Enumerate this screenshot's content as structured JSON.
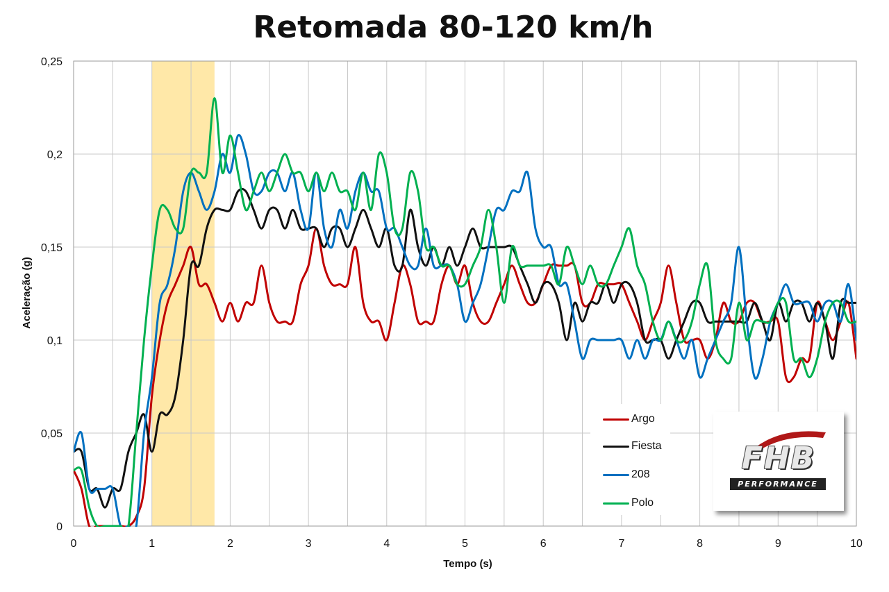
{
  "chart_data": {
    "type": "line",
    "title": "Retomada 80-120 km/h",
    "xlabel": "Tempo (s)",
    "ylabel": "Aceleração (g)",
    "xlim": [
      0,
      10
    ],
    "ylim": [
      0,
      0.25
    ],
    "x_ticks": [
      "0",
      "1",
      "2",
      "3",
      "4",
      "5",
      "6",
      "7",
      "8",
      "9",
      "10"
    ],
    "y_ticks": [
      "0",
      "0,05",
      "0,1",
      "0,15",
      "0,2",
      "0,25"
    ],
    "grid": true,
    "highlight_band": [
      1.0,
      1.8
    ],
    "legend_position": "bottom-right",
    "series": [
      {
        "name": "Argo",
        "color": "#c00000",
        "x": [
          0,
          0.1,
          0.2,
          0.3,
          0.4,
          0.5,
          0.6,
          0.7,
          0.8,
          0.9,
          1.0,
          1.1,
          1.2,
          1.3,
          1.4,
          1.5,
          1.6,
          1.7,
          1.8,
          1.9,
          2.0,
          2.1,
          2.2,
          2.3,
          2.4,
          2.5,
          2.6,
          2.7,
          2.8,
          2.9,
          3.0,
          3.1,
          3.2,
          3.3,
          3.4,
          3.5,
          3.6,
          3.7,
          3.8,
          3.9,
          4.0,
          4.1,
          4.2,
          4.3,
          4.4,
          4.5,
          4.6,
          4.7,
          4.8,
          4.9,
          5.0,
          5.1,
          5.2,
          5.3,
          5.4,
          5.5,
          5.6,
          5.7,
          5.8,
          5.9,
          6.0,
          6.1,
          6.2,
          6.3,
          6.4,
          6.5,
          6.6,
          6.7,
          6.8,
          6.9,
          7.0,
          7.1,
          7.2,
          7.3,
          7.4,
          7.5,
          7.6,
          7.7,
          7.8,
          7.9,
          8.0,
          8.1,
          8.2,
          8.3,
          8.4,
          8.5,
          8.6,
          8.7,
          8.8,
          8.9,
          9.0,
          9.1,
          9.2,
          9.3,
          9.4,
          9.5,
          9.6,
          9.7,
          9.8,
          9.9,
          10.0
        ],
        "y": [
          0.03,
          0.02,
          0.0,
          0.0,
          0.0,
          0.0,
          0.0,
          0.0,
          0.005,
          0.02,
          0.07,
          0.1,
          0.12,
          0.13,
          0.14,
          0.15,
          0.13,
          0.13,
          0.12,
          0.11,
          0.12,
          0.11,
          0.12,
          0.12,
          0.14,
          0.12,
          0.11,
          0.11,
          0.11,
          0.13,
          0.14,
          0.16,
          0.14,
          0.13,
          0.13,
          0.13,
          0.15,
          0.12,
          0.11,
          0.11,
          0.1,
          0.12,
          0.14,
          0.13,
          0.11,
          0.11,
          0.11,
          0.13,
          0.14,
          0.13,
          0.14,
          0.12,
          0.11,
          0.11,
          0.12,
          0.13,
          0.14,
          0.13,
          0.12,
          0.12,
          0.13,
          0.14,
          0.14,
          0.14,
          0.14,
          0.12,
          0.12,
          0.13,
          0.13,
          0.13,
          0.13,
          0.12,
          0.11,
          0.1,
          0.11,
          0.12,
          0.14,
          0.12,
          0.1,
          0.1,
          0.1,
          0.09,
          0.1,
          0.12,
          0.11,
          0.11,
          0.12,
          0.12,
          0.11,
          0.11,
          0.11,
          0.08,
          0.08,
          0.09,
          0.09,
          0.12,
          0.11,
          0.1,
          0.11,
          0.12,
          0.09
        ]
      },
      {
        "name": "Fiesta",
        "color": "#111111",
        "x": [
          0,
          0.1,
          0.2,
          0.3,
          0.4,
          0.5,
          0.6,
          0.7,
          0.8,
          0.9,
          1.0,
          1.1,
          1.2,
          1.3,
          1.4,
          1.5,
          1.6,
          1.7,
          1.8,
          1.9,
          2.0,
          2.1,
          2.2,
          2.3,
          2.4,
          2.5,
          2.6,
          2.7,
          2.8,
          2.9,
          3.0,
          3.1,
          3.2,
          3.3,
          3.4,
          3.5,
          3.6,
          3.7,
          3.8,
          3.9,
          4.0,
          4.1,
          4.2,
          4.3,
          4.4,
          4.5,
          4.6,
          4.7,
          4.8,
          4.9,
          5.0,
          5.1,
          5.2,
          5.3,
          5.4,
          5.5,
          5.6,
          5.7,
          5.8,
          5.9,
          6.0,
          6.1,
          6.2,
          6.3,
          6.4,
          6.5,
          6.6,
          6.7,
          6.8,
          6.9,
          7.0,
          7.1,
          7.2,
          7.3,
          7.4,
          7.5,
          7.6,
          7.7,
          7.8,
          7.9,
          8.0,
          8.1,
          8.2,
          8.3,
          8.4,
          8.5,
          8.6,
          8.7,
          8.8,
          8.9,
          9.0,
          9.1,
          9.2,
          9.3,
          9.4,
          9.5,
          9.6,
          9.7,
          9.8,
          9.9,
          10.0
        ],
        "y": [
          0.04,
          0.04,
          0.02,
          0.02,
          0.01,
          0.02,
          0.02,
          0.04,
          0.05,
          0.06,
          0.04,
          0.06,
          0.06,
          0.07,
          0.1,
          0.14,
          0.14,
          0.16,
          0.17,
          0.17,
          0.17,
          0.18,
          0.18,
          0.17,
          0.16,
          0.17,
          0.17,
          0.16,
          0.17,
          0.16,
          0.16,
          0.16,
          0.15,
          0.16,
          0.16,
          0.15,
          0.16,
          0.17,
          0.16,
          0.15,
          0.16,
          0.14,
          0.14,
          0.17,
          0.15,
          0.14,
          0.15,
          0.14,
          0.15,
          0.14,
          0.15,
          0.16,
          0.15,
          0.15,
          0.15,
          0.15,
          0.15,
          0.14,
          0.13,
          0.12,
          0.13,
          0.13,
          0.12,
          0.1,
          0.12,
          0.11,
          0.12,
          0.12,
          0.13,
          0.12,
          0.13,
          0.13,
          0.12,
          0.1,
          0.1,
          0.1,
          0.09,
          0.1,
          0.11,
          0.12,
          0.12,
          0.11,
          0.11,
          0.11,
          0.11,
          0.11,
          0.11,
          0.12,
          0.11,
          0.1,
          0.12,
          0.11,
          0.12,
          0.12,
          0.11,
          0.12,
          0.11,
          0.09,
          0.12,
          0.12,
          0.12
        ]
      },
      {
        "name": "208",
        "color": "#0070c0",
        "x": [
          0,
          0.1,
          0.2,
          0.3,
          0.4,
          0.5,
          0.6,
          0.7,
          0.8,
          0.9,
          1.0,
          1.1,
          1.2,
          1.3,
          1.4,
          1.5,
          1.6,
          1.7,
          1.8,
          1.9,
          2.0,
          2.1,
          2.2,
          2.3,
          2.4,
          2.5,
          2.6,
          2.7,
          2.8,
          2.9,
          3.0,
          3.1,
          3.2,
          3.3,
          3.4,
          3.5,
          3.6,
          3.7,
          3.8,
          3.9,
          4.0,
          4.1,
          4.2,
          4.3,
          4.4,
          4.5,
          4.6,
          4.7,
          4.8,
          4.9,
          5.0,
          5.1,
          5.2,
          5.3,
          5.4,
          5.5,
          5.6,
          5.7,
          5.8,
          5.9,
          6.0,
          6.1,
          6.2,
          6.3,
          6.4,
          6.5,
          6.6,
          6.7,
          6.8,
          6.9,
          7.0,
          7.1,
          7.2,
          7.3,
          7.4,
          7.5,
          7.6,
          7.7,
          7.8,
          7.9,
          8.0,
          8.1,
          8.2,
          8.3,
          8.4,
          8.5,
          8.6,
          8.7,
          8.8,
          8.9,
          9.0,
          9.1,
          9.2,
          9.3,
          9.4,
          9.5,
          9.6,
          9.7,
          9.8,
          9.9,
          10.0
        ],
        "y": [
          0.04,
          0.05,
          0.02,
          0.02,
          0.02,
          0.02,
          0.0,
          0.0,
          0.0,
          0.05,
          0.08,
          0.12,
          0.13,
          0.15,
          0.18,
          0.19,
          0.18,
          0.17,
          0.18,
          0.2,
          0.19,
          0.21,
          0.2,
          0.18,
          0.18,
          0.19,
          0.19,
          0.18,
          0.19,
          0.17,
          0.16,
          0.19,
          0.16,
          0.15,
          0.17,
          0.16,
          0.18,
          0.19,
          0.18,
          0.18,
          0.16,
          0.16,
          0.15,
          0.14,
          0.14,
          0.16,
          0.14,
          0.14,
          0.14,
          0.13,
          0.11,
          0.12,
          0.13,
          0.15,
          0.17,
          0.17,
          0.18,
          0.18,
          0.19,
          0.16,
          0.15,
          0.15,
          0.13,
          0.13,
          0.11,
          0.09,
          0.1,
          0.1,
          0.1,
          0.1,
          0.1,
          0.09,
          0.1,
          0.09,
          0.1,
          0.1,
          0.11,
          0.1,
          0.09,
          0.1,
          0.08,
          0.09,
          0.1,
          0.11,
          0.12,
          0.15,
          0.11,
          0.08,
          0.09,
          0.11,
          0.12,
          0.13,
          0.12,
          0.12,
          0.12,
          0.11,
          0.12,
          0.12,
          0.11,
          0.13,
          0.1
        ]
      },
      {
        "name": "Polo",
        "color": "#00b050",
        "x": [
          0,
          0.1,
          0.2,
          0.3,
          0.4,
          0.5,
          0.6,
          0.7,
          0.8,
          0.9,
          1.0,
          1.1,
          1.2,
          1.3,
          1.4,
          1.5,
          1.6,
          1.7,
          1.8,
          1.9,
          2.0,
          2.1,
          2.2,
          2.3,
          2.4,
          2.5,
          2.6,
          2.7,
          2.8,
          2.9,
          3.0,
          3.1,
          3.2,
          3.3,
          3.4,
          3.5,
          3.6,
          3.7,
          3.8,
          3.9,
          4.0,
          4.1,
          4.2,
          4.3,
          4.4,
          4.5,
          4.6,
          4.7,
          4.8,
          4.9,
          5.0,
          5.1,
          5.2,
          5.3,
          5.4,
          5.5,
          5.6,
          5.7,
          5.8,
          5.9,
          6.0,
          6.1,
          6.2,
          6.3,
          6.4,
          6.5,
          6.6,
          6.7,
          6.8,
          6.9,
          7.0,
          7.1,
          7.2,
          7.3,
          7.4,
          7.5,
          7.6,
          7.7,
          7.8,
          7.9,
          8.0,
          8.1,
          8.2,
          8.3,
          8.4,
          8.5,
          8.6,
          8.7,
          8.8,
          8.9,
          9.0,
          9.1,
          9.2,
          9.3,
          9.4,
          9.5,
          9.6,
          9.7,
          9.8,
          9.9,
          10.0
        ],
        "y": [
          0.03,
          0.03,
          0.01,
          0.0,
          0.0,
          0.0,
          0.0,
          0.0,
          0.05,
          0.1,
          0.14,
          0.17,
          0.17,
          0.16,
          0.16,
          0.19,
          0.19,
          0.19,
          0.23,
          0.19,
          0.21,
          0.19,
          0.17,
          0.18,
          0.19,
          0.18,
          0.19,
          0.2,
          0.19,
          0.19,
          0.18,
          0.19,
          0.18,
          0.19,
          0.18,
          0.18,
          0.17,
          0.19,
          0.17,
          0.2,
          0.19,
          0.16,
          0.16,
          0.19,
          0.18,
          0.15,
          0.15,
          0.14,
          0.14,
          0.13,
          0.13,
          0.14,
          0.15,
          0.17,
          0.15,
          0.12,
          0.15,
          0.14,
          0.14,
          0.14,
          0.14,
          0.14,
          0.13,
          0.15,
          0.14,
          0.13,
          0.14,
          0.13,
          0.13,
          0.14,
          0.15,
          0.16,
          0.14,
          0.13,
          0.11,
          0.1,
          0.11,
          0.1,
          0.1,
          0.11,
          0.13,
          0.14,
          0.1,
          0.09,
          0.09,
          0.12,
          0.1,
          0.11,
          0.11,
          0.11,
          0.12,
          0.12,
          0.09,
          0.09,
          0.08,
          0.09,
          0.11,
          0.12,
          0.12,
          0.11,
          0.11
        ]
      }
    ]
  },
  "logo": {
    "main": "FHB",
    "sub": "PERFORMANCE"
  }
}
